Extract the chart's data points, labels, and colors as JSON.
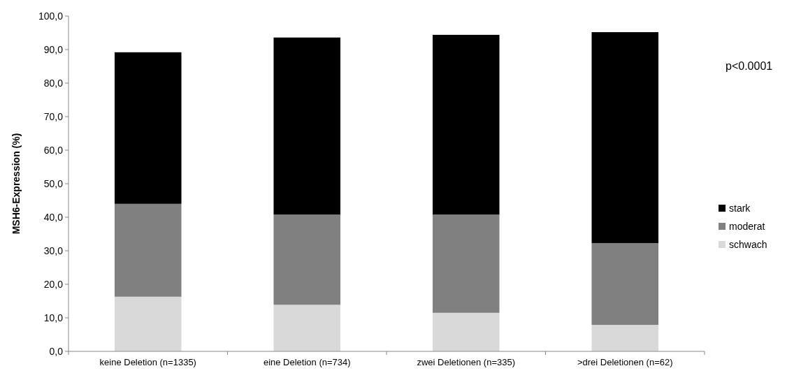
{
  "chart_data": {
    "type": "bar",
    "stacked": true,
    "ylabel": "MSH6-Expression (%)",
    "categories": [
      "keine Deletion (n=1335)",
      "eine Deletion (n=734)",
      "zwei Deletionen (n=335)",
      ">drei Deletionen (n=62)"
    ],
    "series": [
      {
        "name": "schwach",
        "color": "#d9d9d9",
        "values": [
          16.3,
          13.9,
          11.5,
          7.9
        ]
      },
      {
        "name": "moderat",
        "color": "#808080",
        "values": [
          27.7,
          26.9,
          29.3,
          24.4
        ]
      },
      {
        "name": "stark",
        "color": "#000000",
        "values": [
          45.2,
          52.8,
          53.6,
          62.9
        ]
      }
    ],
    "ylim": [
      0,
      100
    ],
    "yticks": [
      {
        "value": 0,
        "label": "0,0"
      },
      {
        "value": 10,
        "label": "10,0"
      },
      {
        "value": 20,
        "label": "20,0"
      },
      {
        "value": 30,
        "label": "30,0"
      },
      {
        "value": 40,
        "label": "40,0"
      },
      {
        "value": 50,
        "label": "50,0"
      },
      {
        "value": 60,
        "label": "60,0"
      },
      {
        "value": 70,
        "label": "70,0"
      },
      {
        "value": 80,
        "label": "80,0"
      },
      {
        "value": 90,
        "label": "90,0"
      },
      {
        "value": 100,
        "label": "100,0"
      }
    ],
    "grid": false,
    "legend": "right",
    "annotations": [
      "p<0.0001"
    ]
  }
}
